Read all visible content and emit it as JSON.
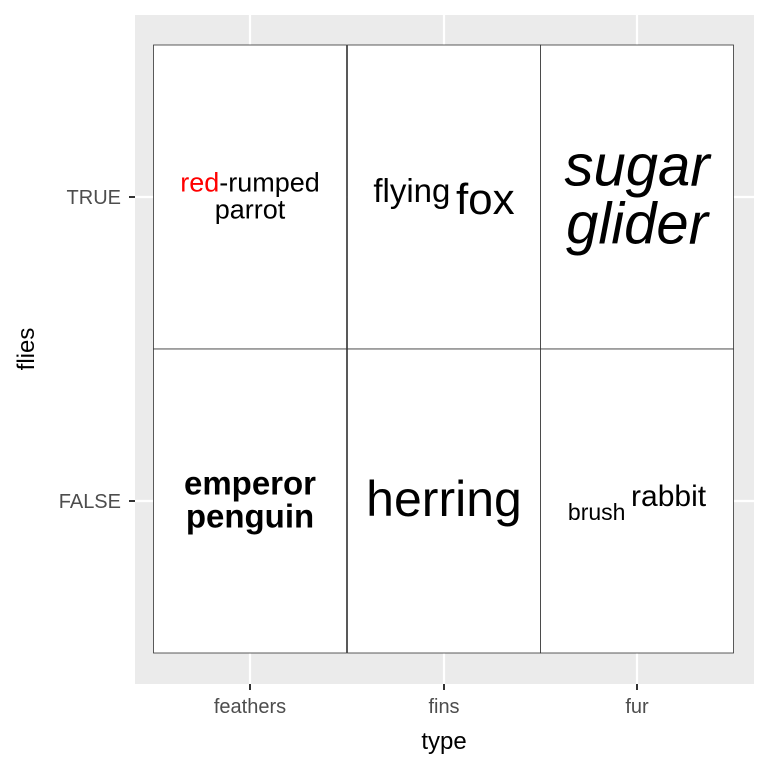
{
  "chart_data": {
    "type": "table",
    "xlabel": "type",
    "ylabel": "flies",
    "x_categories": [
      "feathers",
      "fins",
      "fur"
    ],
    "y_categories": [
      "FALSE",
      "TRUE"
    ],
    "grid": true,
    "colors": {
      "panel_background": "#ebebeb",
      "grid_line": "#ffffff",
      "cell_background": "#ffffff",
      "cell_border": "#333333",
      "highlight": "#ff0000",
      "text": "#000000",
      "tick_text": "#4d4d4d"
    },
    "cells": [
      {
        "x": "feathers",
        "y": "TRUE",
        "lines": [
          [
            {
              "text": "red",
              "color": "#ff0000",
              "size": 27
            },
            {
              "text": "-rumped",
              "size": 27
            }
          ],
          [
            {
              "text": "parrot",
              "size": 27
            }
          ]
        ]
      },
      {
        "x": "fins",
        "y": "TRUE",
        "lines": [
          [
            {
              "text": "flying",
              "size": 33,
              "dy": -8
            },
            {
              "text": " "
            },
            {
              "text": "fox",
              "size": 44,
              "dy": 4
            }
          ]
        ]
      },
      {
        "x": "fur",
        "y": "TRUE",
        "lines": [
          [
            {
              "text": "sugar",
              "size": 58,
              "italic": true
            }
          ],
          [
            {
              "text": "glider",
              "size": 58,
              "italic": true
            }
          ]
        ]
      },
      {
        "x": "feathers",
        "y": "FALSE",
        "lines": [
          [
            {
              "text": "emperor",
              "size": 33,
              "bold": true
            }
          ],
          [
            {
              "text": "penguin",
              "size": 33,
              "bold": true
            }
          ]
        ]
      },
      {
        "x": "fins",
        "y": "FALSE",
        "lines": [
          [
            {
              "text": "herring",
              "size": 50
            }
          ]
        ]
      },
      {
        "x": "fur",
        "y": "FALSE",
        "lines": [
          [
            {
              "text": "brush",
              "size": 23,
              "dy": 10
            },
            {
              "text": " "
            },
            {
              "text": "rabbit",
              "size": 30,
              "dy": -4
            }
          ]
        ]
      }
    ]
  }
}
